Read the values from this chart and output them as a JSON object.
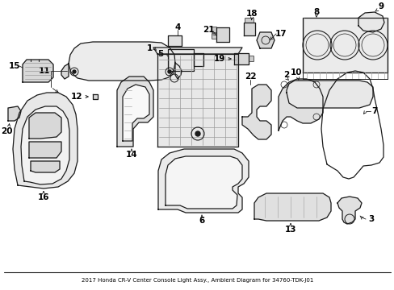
{
  "title": "2017 Honda CR-V Center Console Light Assy., Ambient Diagram for 34760-TDK-J01",
  "bg_color": "#ffffff",
  "line_color": "#1a1a1a",
  "fill_light": "#f0f0f0",
  "fill_mid": "#e0e0e0",
  "fill_dark": "#c8c8c8",
  "lw": 0.9
}
